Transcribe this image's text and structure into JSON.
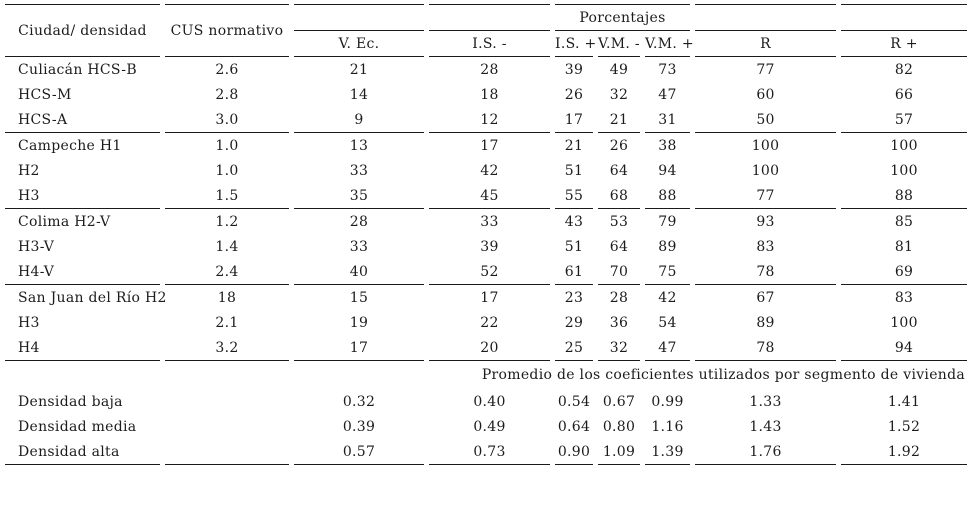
{
  "page": {
    "background": "#ffffff",
    "text_color": "#1c1c1c",
    "rule_color": "#1a1a1a"
  },
  "table": {
    "header": {
      "ciudad": "Ciudad/ densidad",
      "cus": "CUS normativo",
      "porcentajes": "Porcentajes",
      "subcols": [
        "V. Ec.",
        "I.S. -",
        "I.S. +",
        "V.M. -",
        "V.M. +",
        "R",
        "R +"
      ]
    },
    "rows": [
      {
        "label": "Culiacán HCS-B",
        "cus": "2.6",
        "vec": "21",
        "is_minus": "28",
        "is_plus": "39",
        "vm_minus": "49",
        "vm_plus": "73",
        "r": "77",
        "r_plus": "82",
        "section_end": false
      },
      {
        "label": "HCS-M",
        "cus": "2.8",
        "vec": "14",
        "is_minus": "18",
        "is_plus": "26",
        "vm_minus": "32",
        "vm_plus": "47",
        "r": "60",
        "r_plus": "66",
        "section_end": false
      },
      {
        "label": "HCS-A",
        "cus": "3.0",
        "vec": "9",
        "is_minus": "12",
        "is_plus": "17",
        "vm_minus": "21",
        "vm_plus": "31",
        "r": "50",
        "r_plus": "57",
        "section_end": true
      },
      {
        "label": "Campeche H1",
        "cus": "1.0",
        "vec": "13",
        "is_minus": "17",
        "is_plus": "21",
        "vm_minus": "26",
        "vm_plus": "38",
        "r": "100",
        "r_plus": "100",
        "section_end": false
      },
      {
        "label": "H2",
        "cus": "1.0",
        "vec": "33",
        "is_minus": "42",
        "is_plus": "51",
        "vm_minus": "64",
        "vm_plus": "94",
        "r": "100",
        "r_plus": "100",
        "section_end": false
      },
      {
        "label": "H3",
        "cus": "1.5",
        "vec": "35",
        "is_minus": "45",
        "is_plus": "55",
        "vm_minus": "68",
        "vm_plus": "88",
        "r": "77",
        "r_plus": "88",
        "section_end": true
      },
      {
        "label": "Colima H2-V",
        "cus": "1.2",
        "vec": "28",
        "is_minus": "33",
        "is_plus": "43",
        "vm_minus": "53",
        "vm_plus": "79",
        "r": "93",
        "r_plus": "85",
        "section_end": false
      },
      {
        "label": "H3-V",
        "cus": "1.4",
        "vec": "33",
        "is_minus": "39",
        "is_plus": "51",
        "vm_minus": "64",
        "vm_plus": "89",
        "r": "83",
        "r_plus": "81",
        "section_end": false
      },
      {
        "label": "H4-V",
        "cus": "2.4",
        "vec": "40",
        "is_minus": "52",
        "is_plus": "61",
        "vm_minus": "70",
        "vm_plus": "75",
        "r": "78",
        "r_plus": "69",
        "section_end": true
      },
      {
        "label": "San Juan del Río H2",
        "cus": "18",
        "vec": "15",
        "is_minus": "17",
        "is_plus": "23",
        "vm_minus": "28",
        "vm_plus": "42",
        "r": "67",
        "r_plus": "83",
        "section_end": false
      },
      {
        "label": "H3",
        "cus": "2.1",
        "vec": "19",
        "is_minus": "22",
        "is_plus": "29",
        "vm_minus": "36",
        "vm_plus": "54",
        "r": "89",
        "r_plus": "100",
        "section_end": false
      },
      {
        "label": "H4",
        "cus": "3.2",
        "vec": "17",
        "is_minus": "20",
        "is_plus": "25",
        "vm_minus": "32",
        "vm_plus": "47",
        "r": "78",
        "r_plus": "94",
        "section_end": true
      }
    ],
    "promedio": {
      "title": "Promedio de los coeficientes utilizados por segmento de vivienda",
      "rows": [
        {
          "label": "Densidad baja",
          "cus": "",
          "vec": "0.32",
          "is_minus": "0.40",
          "is_plus": "0.54",
          "vm_minus": "0.67",
          "vm_plus": "0.99",
          "r": "1.33",
          "r_plus": "1.41",
          "section_end": false
        },
        {
          "label": "Densidad media",
          "cus": "",
          "vec": "0.39",
          "is_minus": "0.49",
          "is_plus": "0.64",
          "vm_minus": "0.80",
          "vm_plus": "1.16",
          "r": "1.43",
          "r_plus": "1.52",
          "section_end": false
        },
        {
          "label": "Densidad alta",
          "cus": "",
          "vec": "0.57",
          "is_minus": "0.73",
          "is_plus": "0.90",
          "vm_minus": "1.09",
          "vm_plus": "1.39",
          "r": "1.76",
          "r_plus": "1.92",
          "section_end": true
        }
      ]
    }
  }
}
